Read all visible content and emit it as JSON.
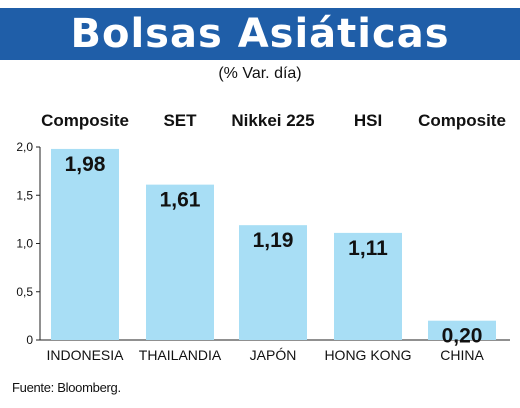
{
  "chart_data": {
    "type": "bar",
    "title": "Bolsas Asiáticas",
    "subtitle": "(% Var. día)",
    "index_labels": [
      "Composite",
      "SET",
      "Nikkei 225",
      "HSI",
      "Composite"
    ],
    "categories": [
      "INDONESIA",
      "THAILANDIA",
      "JAPÓN",
      "HONG KONG",
      "CHINA"
    ],
    "values": [
      1.98,
      1.61,
      1.19,
      1.11,
      0.2
    ],
    "value_labels": [
      "1,98",
      "1,61",
      "1,19",
      "1,11",
      "0,20"
    ],
    "ylim": [
      0,
      2.0
    ],
    "yticks": [
      0,
      0.5,
      1.0,
      1.5,
      2.0
    ],
    "ytick_labels": [
      "0",
      "0,5",
      "1,0",
      "1,5",
      "2,0"
    ],
    "grid": false,
    "bar_color": "#a8def5"
  },
  "source": "Fuente: Bloomberg.",
  "colors": {
    "banner": "#1f5ea8",
    "bar": "#a8def5"
  }
}
